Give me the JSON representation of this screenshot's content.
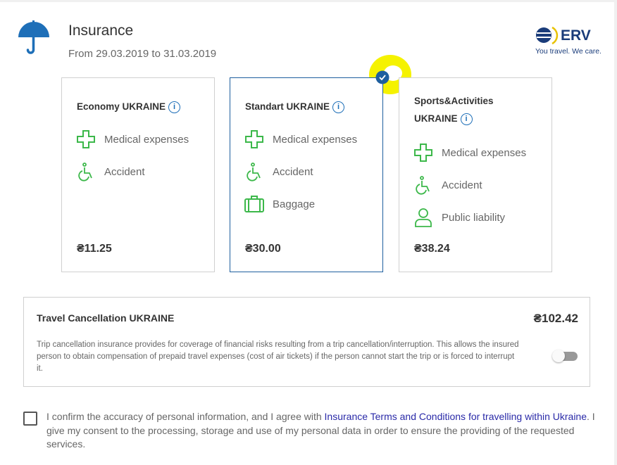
{
  "header": {
    "title": "Insurance",
    "dates": "From 29.03.2019 to 31.03.2019",
    "icon": "umbrella-icon"
  },
  "brand": {
    "name": "ERV",
    "tagline": "You travel. We care."
  },
  "colors": {
    "accent": "#1e6fb8",
    "selected_border": "#1e5f9e",
    "feature_icon": "#3cb84a",
    "link": "#2a2aa8"
  },
  "plans": [
    {
      "name": "Economy UKRAINE",
      "features": [
        "Medical expenses",
        "Accident"
      ],
      "price": "₴11.25",
      "selected": false
    },
    {
      "name": "Standart UKRAINE",
      "features": [
        "Medical expenses",
        "Accident",
        "Baggage"
      ],
      "price": "₴30.00",
      "selected": true
    },
    {
      "name": "Sports&Activities UKRAINE",
      "features": [
        "Medical expenses",
        "Accident",
        "Public liability"
      ],
      "price": "₴38.24",
      "selected": false
    }
  ],
  "cancellation": {
    "title": "Travel Cancellation UKRAINE",
    "price": "₴102.42",
    "description": "Trip cancellation insurance provides for coverage of financial risks resulting from a trip cancellation/interruption. This allows the insured person to obtain compensation of prepaid travel expenses (cost of air tickets) if the person cannot start the trip or is forced to interrupt it.",
    "enabled": false
  },
  "consent": {
    "checked": false,
    "text_before": "I confirm the accuracy of personal information, and I agree with ",
    "link": "Insurance Terms and Conditions for travelling within Ukraine",
    "text_after": ". I give my consent to the processing, storage and use of my personal data in order to ensure the providing of the requested services."
  }
}
